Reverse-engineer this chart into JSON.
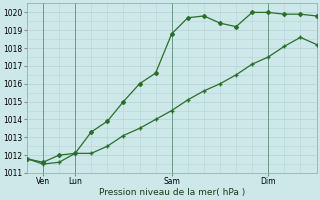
{
  "bg_color": "#cce8e8",
  "grid_color": "#b8d4d4",
  "line_color": "#2a6e2a",
  "marker_color": "#2a6e2a",
  "xlabel_text": "Pression niveau de la mer( hPa )",
  "ylim": [
    1011,
    1020.5
  ],
  "yticks": [
    1011,
    1012,
    1013,
    1014,
    1015,
    1016,
    1017,
    1018,
    1019,
    1020
  ],
  "xtick_labels": [
    "Ven",
    "Lun",
    "Sam",
    "Dim"
  ],
  "xtick_positions": [
    1,
    3,
    9,
    15
  ],
  "xlim": [
    0,
    18
  ],
  "series1_x": [
    0,
    1,
    2,
    3,
    4,
    5,
    6,
    7,
    8,
    9,
    10,
    11,
    12,
    13,
    14,
    15,
    16,
    17,
    18
  ],
  "series1_y": [
    1011.8,
    1011.5,
    1011.6,
    1012.1,
    1012.1,
    1012.5,
    1013.1,
    1013.5,
    1014.0,
    1014.5,
    1015.1,
    1015.6,
    1016.0,
    1016.5,
    1017.1,
    1017.5,
    1018.1,
    1018.6,
    1018.2
  ],
  "series2_x": [
    0,
    1,
    2,
    3,
    4,
    5,
    6,
    7,
    8,
    9,
    10,
    11,
    12,
    13,
    14,
    15,
    16,
    17,
    18
  ],
  "series2_y": [
    1011.8,
    1011.6,
    1012.0,
    1012.1,
    1013.3,
    1013.9,
    1015.0,
    1016.0,
    1016.6,
    1018.8,
    1019.7,
    1019.8,
    1019.4,
    1019.2,
    1020.0,
    1020.0,
    1019.9,
    1019.9,
    1019.8
  ]
}
